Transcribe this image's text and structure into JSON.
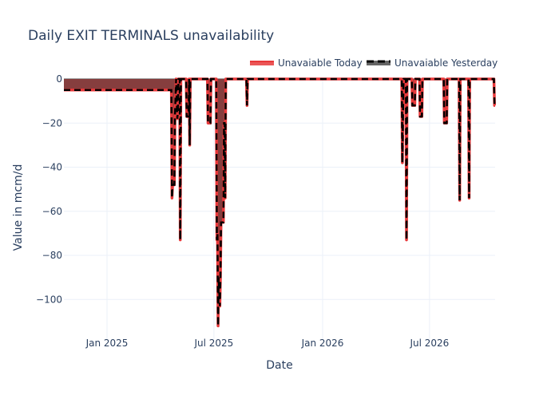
{
  "chart_data": {
    "type": "area",
    "title": "Daily EXIT TERMINALS unavailability",
    "xlabel": "Date",
    "ylabel": "Value in mcm/d",
    "xlim": [
      "2024-10-20",
      "2026-10-20"
    ],
    "ylim": [
      -118,
      0
    ],
    "xticks": [
      {
        "date": "2025-01-01",
        "label": "Jan 2025"
      },
      {
        "date": "2025-07-01",
        "label": "Jul 2025"
      },
      {
        "date": "2026-01-01",
        "label": "Jan 2026"
      },
      {
        "date": "2026-07-01",
        "label": "Jul 2026"
      }
    ],
    "yticks": [
      {
        "value": 0,
        "label": "0"
      },
      {
        "value": -20,
        "label": "−20"
      },
      {
        "value": -40,
        "label": "−40"
      },
      {
        "value": -60,
        "label": "−60"
      },
      {
        "value": -80,
        "label": "−80"
      },
      {
        "value": -100,
        "label": "−100"
      }
    ],
    "legend_position": "top-right",
    "series": [
      {
        "name": "Unavaiable Today",
        "color": "#e8383a",
        "style": "solid",
        "points": [
          [
            "2024-10-20",
            -5
          ],
          [
            "2025-04-20",
            -5
          ],
          [
            "2025-04-21",
            -54
          ],
          [
            "2025-04-22",
            -48
          ],
          [
            "2025-04-25",
            -48
          ],
          [
            "2025-04-26",
            -17
          ],
          [
            "2025-04-28",
            0
          ],
          [
            "2025-04-30",
            -18
          ],
          [
            "2025-05-01",
            -15
          ],
          [
            "2025-05-02",
            0
          ],
          [
            "2025-05-04",
            0
          ],
          [
            "2025-05-05",
            -73
          ],
          [
            "2025-05-06",
            0
          ],
          [
            "2025-05-15",
            0
          ],
          [
            "2025-05-16",
            -17
          ],
          [
            "2025-05-19",
            -17
          ],
          [
            "2025-05-20",
            0
          ],
          [
            "2025-05-21",
            -30
          ],
          [
            "2025-05-22",
            0
          ],
          [
            "2025-06-20",
            0
          ],
          [
            "2025-06-21",
            -20
          ],
          [
            "2025-06-25",
            -20
          ],
          [
            "2025-06-26",
            0
          ],
          [
            "2025-07-05",
            0
          ],
          [
            "2025-07-06",
            -73
          ],
          [
            "2025-07-07",
            -70
          ],
          [
            "2025-07-08",
            -112
          ],
          [
            "2025-07-09",
            -90
          ],
          [
            "2025-07-11",
            -103
          ],
          [
            "2025-07-12",
            -90
          ],
          [
            "2025-07-13",
            -65
          ],
          [
            "2025-07-17",
            -65
          ],
          [
            "2025-07-18",
            -20
          ],
          [
            "2025-07-19",
            -20
          ],
          [
            "2025-07-20",
            -54
          ],
          [
            "2025-07-21",
            0
          ],
          [
            "2025-08-25",
            0
          ],
          [
            "2025-08-26",
            -12
          ],
          [
            "2025-08-27",
            0
          ],
          [
            "2026-05-15",
            0
          ],
          [
            "2026-05-16",
            -38
          ],
          [
            "2026-05-17",
            -17
          ],
          [
            "2026-05-18",
            0
          ],
          [
            "2026-05-22",
            0
          ],
          [
            "2026-05-23",
            -73
          ],
          [
            "2026-05-24",
            0
          ],
          [
            "2026-06-01",
            0
          ],
          [
            "2026-06-02",
            -12
          ],
          [
            "2026-06-06",
            -12
          ],
          [
            "2026-06-07",
            0
          ],
          [
            "2026-06-14",
            0
          ],
          [
            "2026-06-15",
            -17
          ],
          [
            "2026-06-18",
            -17
          ],
          [
            "2026-06-19",
            0
          ],
          [
            "2026-07-25",
            0
          ],
          [
            "2026-07-26",
            -20
          ],
          [
            "2026-07-30",
            -20
          ],
          [
            "2026-07-31",
            0
          ],
          [
            "2026-08-20",
            0
          ],
          [
            "2026-08-21",
            -55
          ],
          [
            "2026-08-22",
            0
          ],
          [
            "2026-09-05",
            0
          ],
          [
            "2026-09-06",
            -54
          ],
          [
            "2026-09-07",
            0
          ],
          [
            "2026-10-18",
            0
          ],
          [
            "2026-10-19",
            -12
          ],
          [
            "2026-10-20",
            -12
          ]
        ]
      },
      {
        "name": "Unavaiable Yesterday",
        "color": "#000000",
        "style": "dash",
        "points": [
          [
            "2024-10-20",
            -5
          ],
          [
            "2025-04-20",
            -5
          ],
          [
            "2025-04-21",
            -54
          ],
          [
            "2025-04-22",
            -48
          ],
          [
            "2025-04-25",
            -48
          ],
          [
            "2025-04-26",
            -17
          ],
          [
            "2025-04-28",
            0
          ],
          [
            "2025-04-30",
            -18
          ],
          [
            "2025-05-01",
            -15
          ],
          [
            "2025-05-02",
            0
          ],
          [
            "2025-05-04",
            0
          ],
          [
            "2025-05-05",
            -73
          ],
          [
            "2025-05-06",
            0
          ],
          [
            "2025-05-15",
            0
          ],
          [
            "2025-05-16",
            -17
          ],
          [
            "2025-05-19",
            -17
          ],
          [
            "2025-05-20",
            0
          ],
          [
            "2025-05-21",
            -30
          ],
          [
            "2025-05-22",
            0
          ],
          [
            "2025-06-20",
            0
          ],
          [
            "2025-06-21",
            -20
          ],
          [
            "2025-06-25",
            -20
          ],
          [
            "2025-06-26",
            0
          ],
          [
            "2025-07-05",
            0
          ],
          [
            "2025-07-06",
            -73
          ],
          [
            "2025-07-07",
            -70
          ],
          [
            "2025-07-08",
            -112
          ],
          [
            "2025-07-09",
            -90
          ],
          [
            "2025-07-11",
            -103
          ],
          [
            "2025-07-12",
            -90
          ],
          [
            "2025-07-13",
            -65
          ],
          [
            "2025-07-17",
            -65
          ],
          [
            "2025-07-18",
            -20
          ],
          [
            "2025-07-19",
            -20
          ],
          [
            "2025-07-20",
            -54
          ],
          [
            "2025-07-21",
            0
          ],
          [
            "2025-08-25",
            0
          ],
          [
            "2025-08-26",
            -12
          ],
          [
            "2025-08-27",
            0
          ],
          [
            "2026-05-15",
            0
          ],
          [
            "2026-05-16",
            -38
          ],
          [
            "2026-05-17",
            -17
          ],
          [
            "2026-05-18",
            0
          ],
          [
            "2026-05-22",
            0
          ],
          [
            "2026-05-23",
            -73
          ],
          [
            "2026-05-24",
            0
          ],
          [
            "2026-06-01",
            0
          ],
          [
            "2026-06-02",
            -12
          ],
          [
            "2026-06-06",
            -12
          ],
          [
            "2026-06-07",
            0
          ],
          [
            "2026-06-14",
            0
          ],
          [
            "2026-06-15",
            -17
          ],
          [
            "2026-06-18",
            -17
          ],
          [
            "2026-06-19",
            0
          ],
          [
            "2026-07-25",
            0
          ],
          [
            "2026-07-26",
            -20
          ],
          [
            "2026-07-30",
            -20
          ],
          [
            "2026-07-31",
            0
          ],
          [
            "2026-08-20",
            0
          ],
          [
            "2026-08-21",
            -55
          ],
          [
            "2026-08-22",
            0
          ],
          [
            "2026-09-05",
            0
          ],
          [
            "2026-09-06",
            -54
          ],
          [
            "2026-09-07",
            0
          ],
          [
            "2026-10-18",
            0
          ],
          [
            "2026-10-19",
            -12
          ],
          [
            "2026-10-20",
            -12
          ]
        ]
      }
    ]
  }
}
